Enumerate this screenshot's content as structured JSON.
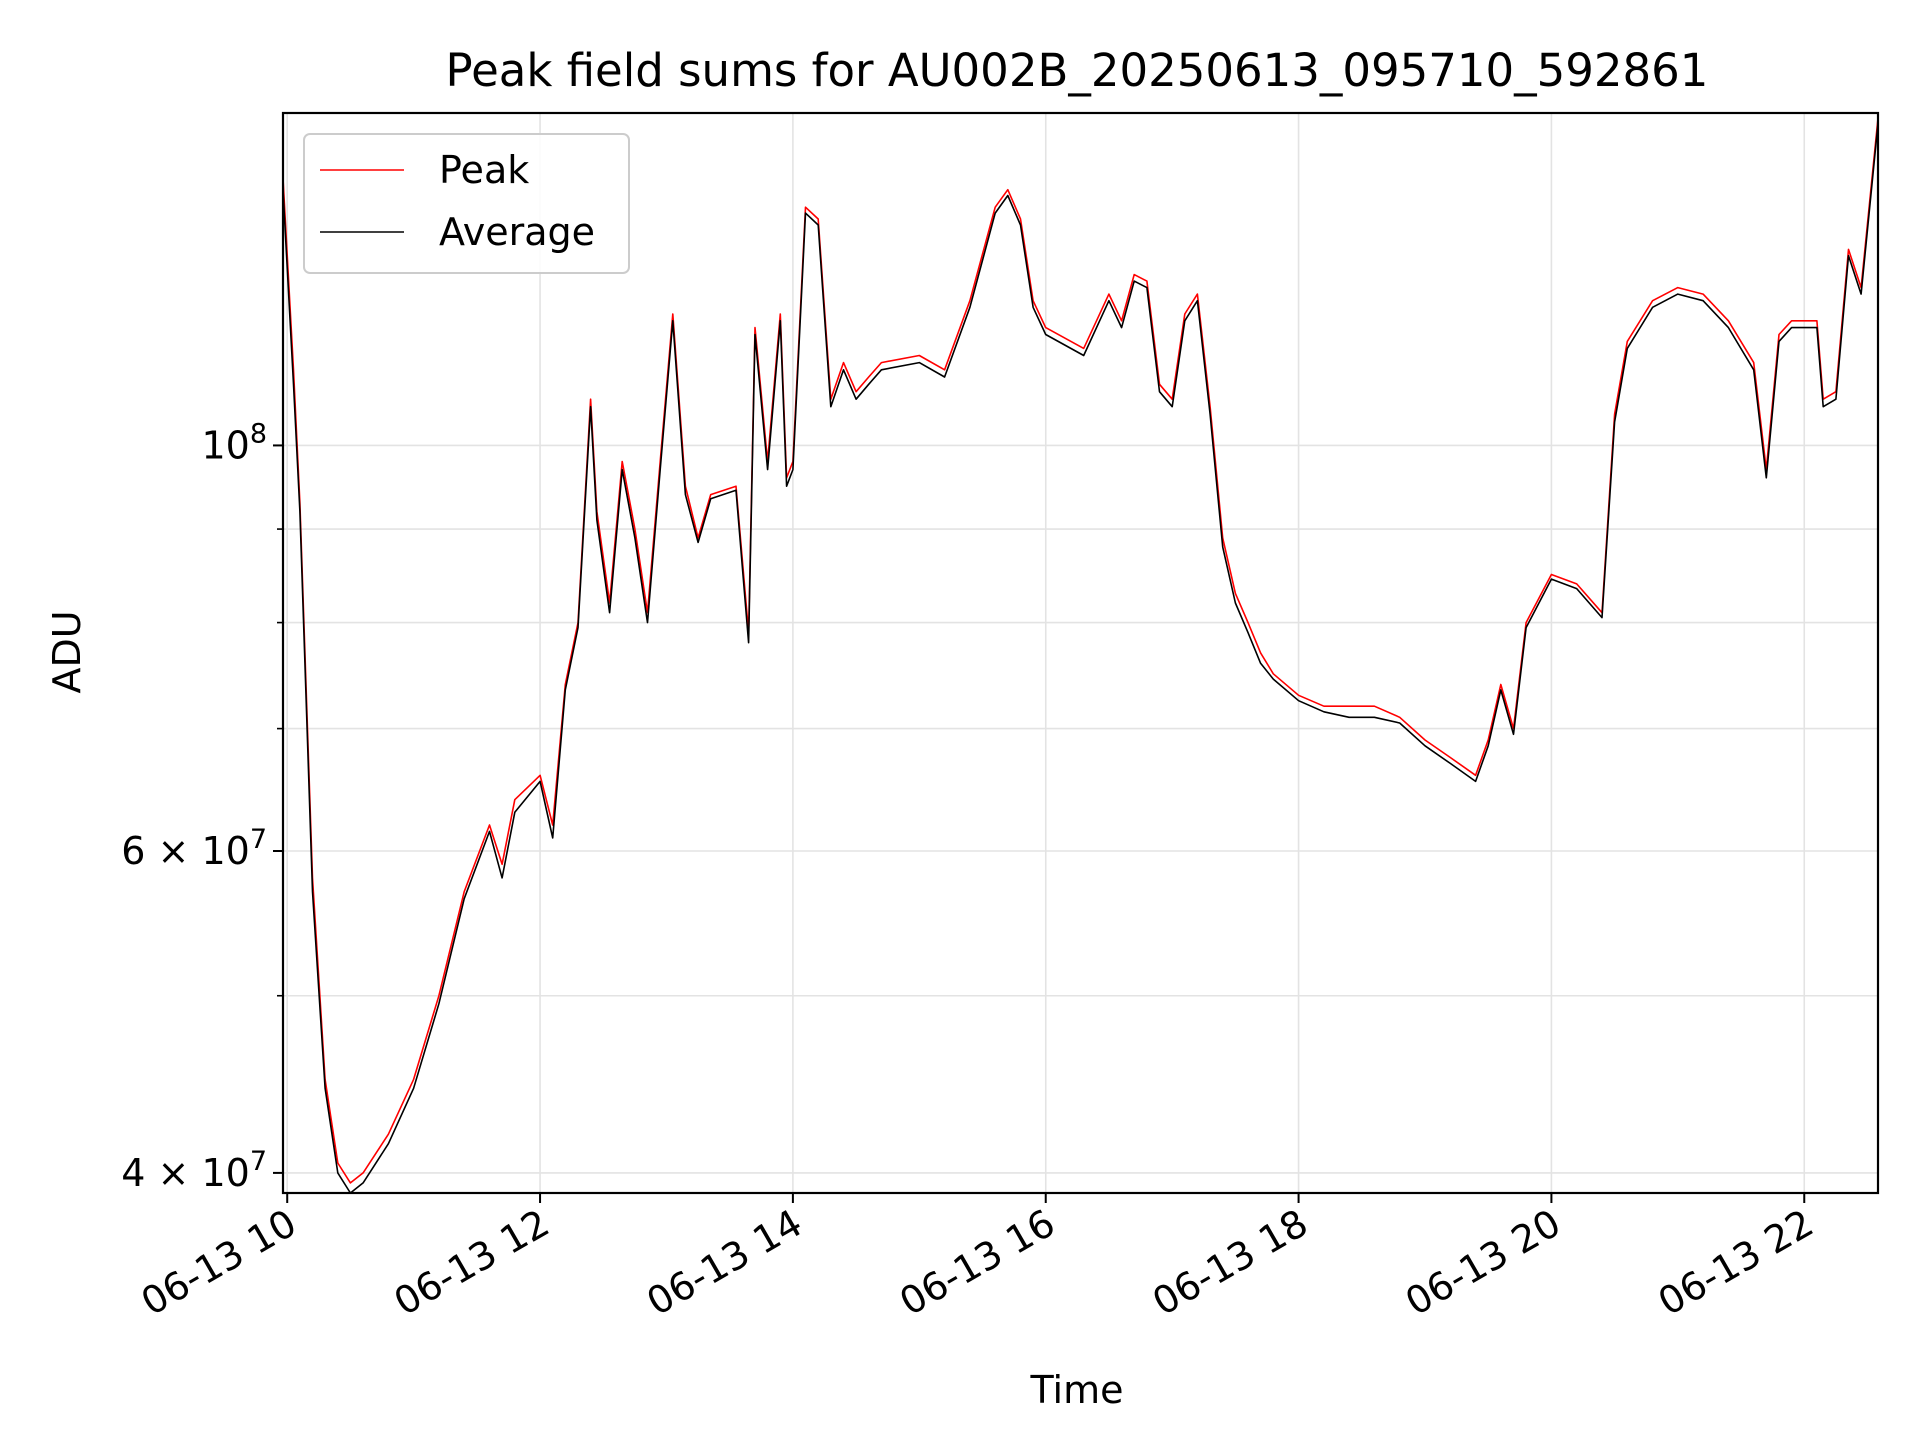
{
  "chart_data": {
    "type": "line",
    "title": "Peak field sums for AU002B_20250613_095710_592861",
    "xlabel": "Time",
    "ylabel": "ADU",
    "y_scale": "log",
    "ylim": [
      39000000,
      152000000
    ],
    "xlim": [
      "06-13 09:58",
      "06-13 22:35"
    ],
    "grid": true,
    "legend_position": "top-left",
    "x_ticks": [
      {
        "value": "06-13 10:00",
        "label": "06-13 10"
      },
      {
        "value": "06-13 12:00",
        "label": "06-13 12"
      },
      {
        "value": "06-13 14:00",
        "label": "06-13 14"
      },
      {
        "value": "06-13 16:00",
        "label": "06-13 16"
      },
      {
        "value": "06-13 18:00",
        "label": "06-13 18"
      },
      {
        "value": "06-13 20:00",
        "label": "06-13 20"
      },
      {
        "value": "06-13 22:00",
        "label": "06-13 22"
      }
    ],
    "y_major_ticks": [
      {
        "value": 40000000,
        "base": "4 × 10",
        "exp": "7"
      },
      {
        "value": 60000000,
        "base": "6 × 10",
        "exp": "7"
      },
      {
        "value": 100000000,
        "base": "10",
        "exp": "8"
      }
    ],
    "y_minor_grid": [
      50000000,
      70000000,
      80000000,
      90000000
    ],
    "series": [
      {
        "name": "Peak",
        "color": "#ff0000",
        "x": [
          "06-13 09:58",
          "06-13 10:03",
          "06-13 10:06",
          "06-13 10:12",
          "06-13 10:18",
          "06-13 10:24",
          "06-13 10:30",
          "06-13 10:36",
          "06-13 10:48",
          "06-13 11:00",
          "06-13 11:12",
          "06-13 11:24",
          "06-13 11:36",
          "06-13 11:42",
          "06-13 11:48",
          "06-13 12:00",
          "06-13 12:06",
          "06-13 12:12",
          "06-13 12:18",
          "06-13 12:24",
          "06-13 12:27",
          "06-13 12:33",
          "06-13 12:39",
          "06-13 12:45",
          "06-13 12:51",
          "06-13 12:57",
          "06-13 13:03",
          "06-13 13:09",
          "06-13 13:15",
          "06-13 13:21",
          "06-13 13:33",
          "06-13 13:39",
          "06-13 13:42",
          "06-13 13:48",
          "06-13 13:54",
          "06-13 13:57",
          "06-13 14:00",
          "06-13 14:06",
          "06-13 14:12",
          "06-13 14:18",
          "06-13 14:24",
          "06-13 14:30",
          "06-13 14:36",
          "06-13 14:42",
          "06-13 15:00",
          "06-13 15:12",
          "06-13 15:24",
          "06-13 15:36",
          "06-13 15:42",
          "06-13 15:48",
          "06-13 15:54",
          "06-13 16:00",
          "06-13 16:18",
          "06-13 16:30",
          "06-13 16:36",
          "06-13 16:42",
          "06-13 16:48",
          "06-13 16:54",
          "06-13 17:00",
          "06-13 17:06",
          "06-13 17:12",
          "06-13 17:18",
          "06-13 17:24",
          "06-13 17:30",
          "06-13 17:36",
          "06-13 17:42",
          "06-13 17:48",
          "06-13 18:00",
          "06-13 18:12",
          "06-13 18:24",
          "06-13 18:36",
          "06-13 18:48",
          "06-13 19:00",
          "06-13 19:12",
          "06-13 19:24",
          "06-13 19:30",
          "06-13 19:36",
          "06-13 19:42",
          "06-13 19:48",
          "06-13 20:00",
          "06-13 20:12",
          "06-13 20:24",
          "06-13 20:30",
          "06-13 20:36",
          "06-13 20:48",
          "06-13 21:00",
          "06-13 21:12",
          "06-13 21:24",
          "06-13 21:36",
          "06-13 21:42",
          "06-13 21:48",
          "06-13 21:54",
          "06-13 22:06",
          "06-13 22:09",
          "06-13 22:15",
          "06-13 22:21",
          "06-13 22:27",
          "06-13 22:35"
        ],
        "values": [
          140000000,
          110000000,
          93000000,
          58000000,
          45000000,
          40500000,
          39500000,
          40000000,
          42000000,
          45000000,
          50000000,
          57000000,
          62000000,
          59000000,
          64000000,
          66000000,
          62000000,
          74000000,
          80000000,
          106000000,
          92000000,
          82000000,
          98000000,
          90000000,
          81000000,
          98000000,
          118000000,
          95000000,
          89000000,
          94000000,
          95000000,
          79000000,
          116000000,
          98000000,
          118000000,
          96000000,
          98000000,
          135000000,
          133000000,
          106000000,
          111000000,
          107000000,
          109000000,
          111000000,
          112000000,
          110000000,
          120000000,
          135000000,
          138000000,
          133000000,
          120000000,
          116000000,
          113000000,
          121000000,
          117000000,
          124000000,
          123000000,
          108000000,
          106000000,
          118000000,
          121000000,
          105000000,
          89000000,
          83000000,
          80000000,
          77000000,
          75000000,
          73000000,
          72000000,
          72000000,
          72000000,
          71000000,
          69000000,
          67500000,
          66000000,
          69000000,
          74000000,
          70000000,
          80000000,
          85000000,
          84000000,
          81000000,
          104000000,
          114000000,
          120000000,
          122000000,
          121000000,
          117000000,
          111000000,
          97000000,
          115000000,
          117000000,
          117000000,
          106000000,
          107000000,
          128000000,
          122000000,
          151000000
        ]
      },
      {
        "name": "Average",
        "color": "#000000",
        "x": [
          "06-13 09:58",
          "06-13 10:03",
          "06-13 10:06",
          "06-13 10:12",
          "06-13 10:18",
          "06-13 10:24",
          "06-13 10:30",
          "06-13 10:36",
          "06-13 10:48",
          "06-13 11:00",
          "06-13 11:12",
          "06-13 11:24",
          "06-13 11:36",
          "06-13 11:42",
          "06-13 11:48",
          "06-13 12:00",
          "06-13 12:06",
          "06-13 12:12",
          "06-13 12:18",
          "06-13 12:24",
          "06-13 12:27",
          "06-13 12:33",
          "06-13 12:39",
          "06-13 12:45",
          "06-13 12:51",
          "06-13 12:57",
          "06-13 13:03",
          "06-13 13:09",
          "06-13 13:15",
          "06-13 13:21",
          "06-13 13:33",
          "06-13 13:39",
          "06-13 13:42",
          "06-13 13:48",
          "06-13 13:54",
          "06-13 13:57",
          "06-13 14:00",
          "06-13 14:06",
          "06-13 14:12",
          "06-13 14:18",
          "06-13 14:24",
          "06-13 14:30",
          "06-13 14:36",
          "06-13 14:42",
          "06-13 15:00",
          "06-13 15:12",
          "06-13 15:24",
          "06-13 15:36",
          "06-13 15:42",
          "06-13 15:48",
          "06-13 15:54",
          "06-13 16:00",
          "06-13 16:18",
          "06-13 16:30",
          "06-13 16:36",
          "06-13 16:42",
          "06-13 16:48",
          "06-13 16:54",
          "06-13 17:00",
          "06-13 17:06",
          "06-13 17:12",
          "06-13 17:18",
          "06-13 17:24",
          "06-13 17:30",
          "06-13 17:36",
          "06-13 17:42",
          "06-13 17:48",
          "06-13 18:00",
          "06-13 18:12",
          "06-13 18:24",
          "06-13 18:36",
          "06-13 18:48",
          "06-13 19:00",
          "06-13 19:12",
          "06-13 19:24",
          "06-13 19:30",
          "06-13 19:36",
          "06-13 19:42",
          "06-13 19:48",
          "06-13 20:00",
          "06-13 20:12",
          "06-13 20:24",
          "06-13 20:30",
          "06-13 20:36",
          "06-13 20:48",
          "06-13 21:00",
          "06-13 21:12",
          "06-13 21:24",
          "06-13 21:36",
          "06-13 21:42",
          "06-13 21:48",
          "06-13 21:54",
          "06-13 22:06",
          "06-13 22:09",
          "06-13 22:15",
          "06-13 22:21",
          "06-13 22:27",
          "06-13 22:35"
        ],
        "values": [
          138000000,
          108000000,
          92000000,
          57000000,
          44500000,
          40000000,
          39000000,
          39500000,
          41500000,
          44500000,
          49500000,
          56500000,
          61500000,
          58000000,
          63000000,
          65500000,
          61000000,
          73500000,
          79500000,
          105000000,
          91000000,
          81000000,
          97000000,
          89000000,
          80000000,
          97000000,
          117000000,
          94000000,
          88500000,
          93500000,
          94500000,
          78000000,
          115000000,
          97000000,
          117000000,
          95000000,
          97000000,
          134000000,
          132000000,
          105000000,
          110000000,
          106000000,
          108000000,
          110000000,
          111000000,
          109000000,
          119000000,
          134000000,
          137000000,
          132000000,
          119000000,
          115000000,
          112000000,
          120000000,
          116000000,
          123000000,
          122000000,
          107000000,
          105000000,
          117000000,
          120000000,
          104000000,
          88000000,
          82000000,
          79000000,
          76000000,
          74500000,
          72500000,
          71500000,
          71000000,
          71000000,
          70500000,
          68500000,
          67000000,
          65500000,
          68500000,
          73500000,
          69500000,
          79500000,
          84500000,
          83500000,
          80500000,
          103000000,
          113000000,
          119000000,
          121000000,
          120000000,
          116000000,
          110000000,
          96000000,
          114000000,
          116000000,
          116000000,
          105000000,
          106000000,
          127000000,
          121000000,
          150000000
        ]
      }
    ]
  }
}
